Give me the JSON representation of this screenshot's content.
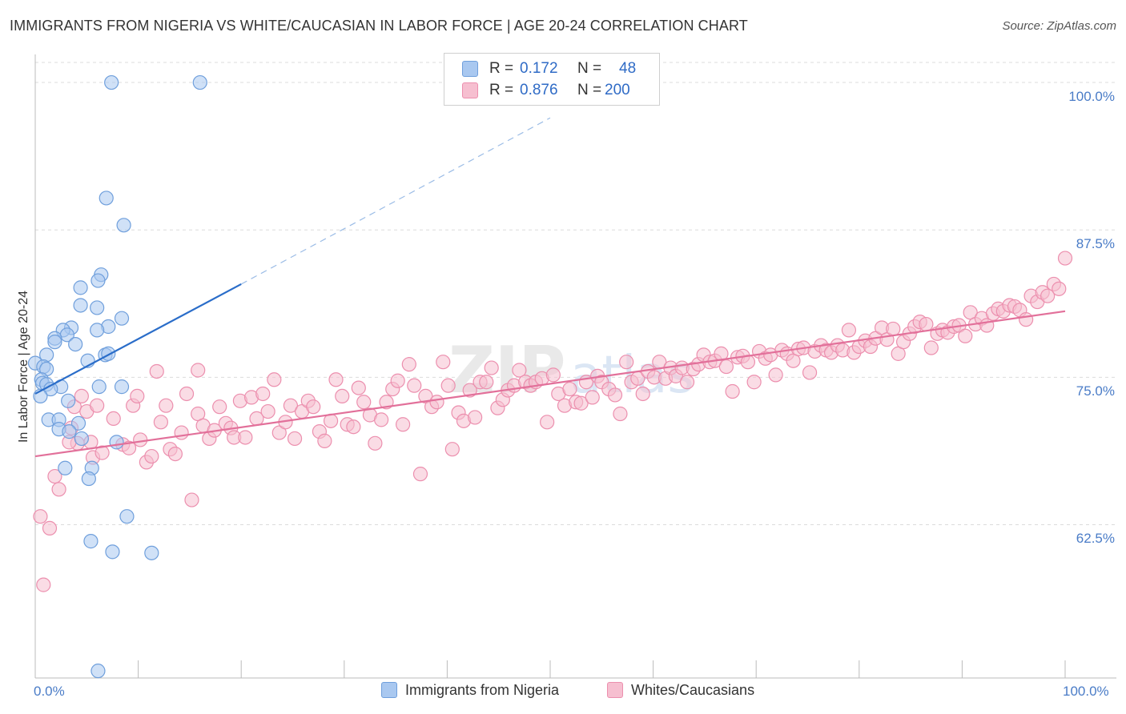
{
  "title": "IMMIGRANTS FROM NIGERIA VS WHITE/CAUCASIAN IN LABOR FORCE | AGE 20-24 CORRELATION CHART",
  "source": "Source: ZipAtlas.com",
  "watermark": "ZIPatlas",
  "legend": {
    "blue": {
      "r_label": "R =",
      "r_value": "0.172",
      "n_label": "N =",
      "n_value": "48"
    },
    "pink": {
      "r_label": "R =",
      "r_value": "0.876",
      "n_label": "N =",
      "n_value": "200"
    }
  },
  "bottom_legend": {
    "blue": "Immigrants from Nigeria",
    "pink": "Whites/Caucasians"
  },
  "colors": {
    "blue_fill": "#a9c8f0",
    "blue_stroke": "#6f9fdc",
    "blue_line": "#2a6dc9",
    "pink_fill": "#f6bfd0",
    "pink_stroke": "#ec8fae",
    "pink_line": "#e2709a",
    "tick_text": "#4a7cc7",
    "grid": "#dcdcdc"
  },
  "chart_data": {
    "type": "scatter",
    "title": "IMMIGRANTS FROM NIGERIA VS WHITE/CAUCASIAN IN LABOR FORCE | AGE 20-24 CORRELATION CHART",
    "xlabel": "",
    "ylabel": "In Labor Force | Age 20-24",
    "xlim": [
      0,
      100
    ],
    "ylim": [
      49.5,
      101.7
    ],
    "x_tick_labels": [
      "0.0%",
      "100.0%"
    ],
    "y_ticks": [
      62.5,
      75.0,
      87.5,
      100.0
    ],
    "y_tick_labels": [
      "62.5%",
      "75.0%",
      "87.5%",
      "100.0%"
    ],
    "grid": true,
    "legend_position": "top-center",
    "series": [
      {
        "name": "Immigrants from Nigeria",
        "color": "blue",
        "trend": {
          "x": [
            0,
            20
          ],
          "y": [
            73.6,
            82.9
          ],
          "dashed_to": [
            50,
            97.0
          ]
        },
        "points": [
          [
            7.4,
            100.0
          ],
          [
            16.0,
            100.0
          ],
          [
            6.9,
            90.2
          ],
          [
            8.6,
            87.9
          ],
          [
            6.4,
            83.7
          ],
          [
            6.1,
            83.2
          ],
          [
            4.4,
            82.6
          ],
          [
            4.4,
            81.1
          ],
          [
            6.0,
            80.9
          ],
          [
            8.4,
            80.0
          ],
          [
            7.1,
            79.3
          ],
          [
            6.0,
            79.0
          ],
          [
            3.5,
            79.2
          ],
          [
            2.7,
            79.0
          ],
          [
            3.1,
            78.6
          ],
          [
            1.9,
            78.3
          ],
          [
            1.9,
            78.0
          ],
          [
            3.9,
            77.8
          ],
          [
            1.1,
            76.9
          ],
          [
            6.8,
            76.9
          ],
          [
            7.1,
            77.0
          ],
          [
            5.1,
            76.4
          ],
          [
            0.0,
            76.2
          ],
          [
            0.8,
            75.9
          ],
          [
            1.1,
            75.7
          ],
          [
            0.6,
            74.8
          ],
          [
            0.7,
            74.5
          ],
          [
            1.1,
            74.4
          ],
          [
            2.5,
            74.2
          ],
          [
            6.2,
            74.2
          ],
          [
            8.4,
            74.2
          ],
          [
            1.5,
            74.0
          ],
          [
            0.5,
            73.4
          ],
          [
            3.2,
            73.0
          ],
          [
            1.3,
            71.4
          ],
          [
            2.3,
            71.4
          ],
          [
            4.2,
            71.1
          ],
          [
            2.3,
            70.6
          ],
          [
            3.3,
            70.4
          ],
          [
            4.5,
            69.8
          ],
          [
            7.9,
            69.5
          ],
          [
            2.9,
            67.3
          ],
          [
            5.5,
            67.3
          ],
          [
            5.2,
            66.4
          ],
          [
            8.9,
            63.2
          ],
          [
            5.4,
            61.1
          ],
          [
            7.5,
            60.2
          ],
          [
            11.3,
            60.1
          ],
          [
            6.1,
            50.1
          ]
        ]
      },
      {
        "name": "Whites/Caucasians",
        "color": "pink",
        "trend": {
          "x": [
            0,
            100
          ],
          "y": [
            68.3,
            80.6
          ]
        },
        "points": [
          [
            0.5,
            63.2
          ],
          [
            1.4,
            62.2
          ],
          [
            0.8,
            57.4
          ],
          [
            1.9,
            66.6
          ],
          [
            2.3,
            65.5
          ],
          [
            3.5,
            70.7
          ],
          [
            3.8,
            72.5
          ],
          [
            4.1,
            69.4
          ],
          [
            4.5,
            73.4
          ],
          [
            5.0,
            72.1
          ],
          [
            5.4,
            69.5
          ],
          [
            5.6,
            68.2
          ],
          [
            6.0,
            72.6
          ],
          [
            6.5,
            68.6
          ],
          [
            7.6,
            71.5
          ],
          [
            8.5,
            69.3
          ],
          [
            9.1,
            69.0
          ],
          [
            9.5,
            72.6
          ],
          [
            9.9,
            73.4
          ],
          [
            10.2,
            69.7
          ],
          [
            10.8,
            67.8
          ],
          [
            11.3,
            68.3
          ],
          [
            11.8,
            75.5
          ],
          [
            12.2,
            71.2
          ],
          [
            12.7,
            72.6
          ],
          [
            13.1,
            68.9
          ],
          [
            13.6,
            68.5
          ],
          [
            14.2,
            70.3
          ],
          [
            14.7,
            73.6
          ],
          [
            15.2,
            64.6
          ],
          [
            15.8,
            71.9
          ],
          [
            16.3,
            70.9
          ],
          [
            16.9,
            69.8
          ],
          [
            17.4,
            70.5
          ],
          [
            17.9,
            72.5
          ],
          [
            18.5,
            71.1
          ],
          [
            19.0,
            70.7
          ],
          [
            19.3,
            69.9
          ],
          [
            19.9,
            73.0
          ],
          [
            20.4,
            69.9
          ],
          [
            21.0,
            73.3
          ],
          [
            21.5,
            71.5
          ],
          [
            22.1,
            73.6
          ],
          [
            22.6,
            72.1
          ],
          [
            23.2,
            74.8
          ],
          [
            23.7,
            70.3
          ],
          [
            24.3,
            71.2
          ],
          [
            24.8,
            72.6
          ],
          [
            25.2,
            69.8
          ],
          [
            25.9,
            72.1
          ],
          [
            26.5,
            73.0
          ],
          [
            27.0,
            72.5
          ],
          [
            27.6,
            70.4
          ],
          [
            28.1,
            69.6
          ],
          [
            28.7,
            71.3
          ],
          [
            29.2,
            74.8
          ],
          [
            29.8,
            73.4
          ],
          [
            30.3,
            71.0
          ],
          [
            30.9,
            70.8
          ],
          [
            31.4,
            74.1
          ],
          [
            31.9,
            72.9
          ],
          [
            32.5,
            71.8
          ],
          [
            33.0,
            69.4
          ],
          [
            33.6,
            71.4
          ],
          [
            34.1,
            72.9
          ],
          [
            34.7,
            74.0
          ],
          [
            35.2,
            74.7
          ],
          [
            35.7,
            71.0
          ],
          [
            36.3,
            76.1
          ],
          [
            36.8,
            74.3
          ],
          [
            37.4,
            66.8
          ],
          [
            37.9,
            73.4
          ],
          [
            38.5,
            72.5
          ],
          [
            39.0,
            72.9
          ],
          [
            39.6,
            76.3
          ],
          [
            40.1,
            74.3
          ],
          [
            40.5,
            68.9
          ],
          [
            41.1,
            72.0
          ],
          [
            41.6,
            71.3
          ],
          [
            42.2,
            73.9
          ],
          [
            42.7,
            71.6
          ],
          [
            43.2,
            74.6
          ],
          [
            43.8,
            74.6
          ],
          [
            44.3,
            75.8
          ],
          [
            44.9,
            72.4
          ],
          [
            45.4,
            73.1
          ],
          [
            45.9,
            73.9
          ],
          [
            46.5,
            74.3
          ],
          [
            47.0,
            75.6
          ],
          [
            47.6,
            74.6
          ],
          [
            48.1,
            74.3
          ],
          [
            48.6,
            74.6
          ],
          [
            49.2,
            74.9
          ],
          [
            49.7,
            71.2
          ],
          [
            50.3,
            75.2
          ],
          [
            50.8,
            73.6
          ],
          [
            51.4,
            72.6
          ],
          [
            51.9,
            74.0
          ],
          [
            52.5,
            72.9
          ],
          [
            53.0,
            72.8
          ],
          [
            53.5,
            74.6
          ],
          [
            54.1,
            73.3
          ],
          [
            54.6,
            75.1
          ],
          [
            55.0,
            74.6
          ],
          [
            55.7,
            74.0
          ],
          [
            56.3,
            73.5
          ],
          [
            56.8,
            71.9
          ],
          [
            57.4,
            76.3
          ],
          [
            57.9,
            74.6
          ],
          [
            58.5,
            74.9
          ],
          [
            59.0,
            73.6
          ],
          [
            59.5,
            75.5
          ],
          [
            60.1,
            75.0
          ],
          [
            60.6,
            76.3
          ],
          [
            61.2,
            74.9
          ],
          [
            61.7,
            75.8
          ],
          [
            62.2,
            75.1
          ],
          [
            62.8,
            75.8
          ],
          [
            63.3,
            74.6
          ],
          [
            63.9,
            75.7
          ],
          [
            64.4,
            76.1
          ],
          [
            64.9,
            76.9
          ],
          [
            65.5,
            76.3
          ],
          [
            66.0,
            76.4
          ],
          [
            66.6,
            77.0
          ],
          [
            67.1,
            75.9
          ],
          [
            67.7,
            73.8
          ],
          [
            68.2,
            76.7
          ],
          [
            68.7,
            76.8
          ],
          [
            69.2,
            76.3
          ],
          [
            69.8,
            74.6
          ],
          [
            70.3,
            77.2
          ],
          [
            70.9,
            76.6
          ],
          [
            71.4,
            76.9
          ],
          [
            71.9,
            75.2
          ],
          [
            72.5,
            77.3
          ],
          [
            73.0,
            77.0
          ],
          [
            73.6,
            76.4
          ],
          [
            74.1,
            77.4
          ],
          [
            74.6,
            77.5
          ],
          [
            75.2,
            75.4
          ],
          [
            75.7,
            77.2
          ],
          [
            76.3,
            77.7
          ],
          [
            76.8,
            77.3
          ],
          [
            77.3,
            77.1
          ],
          [
            77.9,
            77.7
          ],
          [
            78.4,
            77.3
          ],
          [
            79.0,
            79.0
          ],
          [
            79.5,
            77.1
          ],
          [
            80.0,
            77.6
          ],
          [
            80.6,
            78.1
          ],
          [
            81.1,
            77.6
          ],
          [
            81.6,
            78.3
          ],
          [
            82.2,
            79.2
          ],
          [
            82.7,
            78.2
          ],
          [
            83.3,
            79.1
          ],
          [
            83.8,
            77.0
          ],
          [
            84.3,
            78.0
          ],
          [
            84.9,
            78.7
          ],
          [
            85.4,
            79.3
          ],
          [
            85.9,
            79.7
          ],
          [
            86.5,
            79.5
          ],
          [
            87.0,
            77.5
          ],
          [
            87.6,
            78.7
          ],
          [
            88.1,
            79.0
          ],
          [
            88.6,
            78.8
          ],
          [
            89.2,
            79.3
          ],
          [
            89.7,
            79.4
          ],
          [
            90.3,
            78.5
          ],
          [
            90.8,
            80.5
          ],
          [
            91.3,
            79.5
          ],
          [
            91.9,
            80.0
          ],
          [
            92.4,
            79.4
          ],
          [
            93.0,
            80.4
          ],
          [
            93.5,
            80.8
          ],
          [
            94.0,
            80.6
          ],
          [
            94.6,
            81.1
          ],
          [
            95.1,
            81.0
          ],
          [
            95.6,
            80.7
          ],
          [
            96.2,
            79.9
          ],
          [
            96.7,
            81.9
          ],
          [
            97.3,
            81.4
          ],
          [
            97.8,
            82.2
          ],
          [
            98.3,
            81.9
          ],
          [
            98.9,
            82.9
          ],
          [
            99.4,
            82.5
          ],
          [
            100.0,
            85.1
          ],
          [
            3.3,
            69.5
          ],
          [
            15.8,
            75.6
          ]
        ]
      }
    ]
  }
}
